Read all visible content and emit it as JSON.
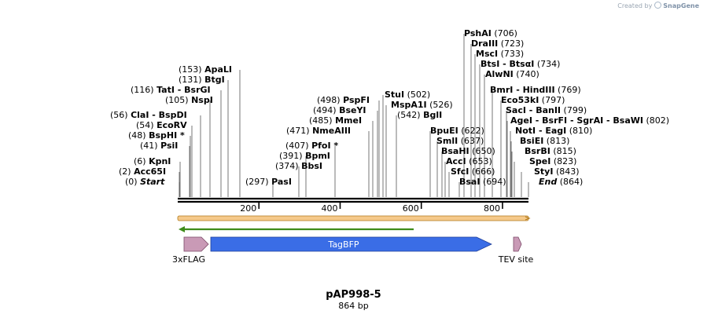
{
  "watermark": {
    "prefix": "Created by",
    "brand": "SnapGene"
  },
  "plasmid": {
    "name": "pAP998-5",
    "length_label": "864 bp",
    "length": 864
  },
  "ruler": {
    "ticks": [
      200,
      400,
      600,
      800
    ]
  },
  "sites": [
    {
      "pos": "(0)",
      "name": "Start",
      "italic": true
    },
    {
      "pos": "(2)",
      "name": "Acc65I"
    },
    {
      "pos": "(6)",
      "name": "KpnI"
    },
    {
      "pos": "(41)",
      "name": "PsiI"
    },
    {
      "pos": "(48)",
      "name": "BspHI *"
    },
    {
      "pos": "(54)",
      "name": "EcoRV"
    },
    {
      "pos": "(56)",
      "name": "ClaI",
      "extra": "- BspDI"
    },
    {
      "pos": "(105)",
      "name": "NspI"
    },
    {
      "pos": "(116)",
      "name": "TatI",
      "extra": "- BsrGI"
    },
    {
      "pos": "(131)",
      "name": "BtgI"
    },
    {
      "pos": "(153)",
      "name": "ApaLI"
    },
    {
      "pos": "(297)",
      "name": "PasI"
    },
    {
      "pos": "(374)",
      "name": "BbsI"
    },
    {
      "pos": "(391)",
      "name": "BpmI"
    },
    {
      "pos": "(407)",
      "name": "PfoI *"
    },
    {
      "pos": "(471)",
      "name": "NmeAIII"
    },
    {
      "pos": "(485)",
      "name": "MmeI"
    },
    {
      "pos": "(494)",
      "name": "BseYI"
    },
    {
      "pos": "(498)",
      "name": "PspFI"
    },
    {
      "pos": "(502)",
      "name": "StuI"
    },
    {
      "pos": "(526)",
      "name": "MspA1I"
    },
    {
      "pos": "(542)",
      "name": "BglI"
    },
    {
      "pos": "(622)",
      "name": "BpuEI"
    },
    {
      "pos": "(637)",
      "name": "SmlI"
    },
    {
      "pos": "(650)",
      "name": "BsaHI"
    },
    {
      "pos": "(653)",
      "name": "AccI"
    },
    {
      "pos": "(666)",
      "name": "SfcI"
    },
    {
      "pos": "(694)",
      "name": "BsaI"
    },
    {
      "pos": "(706)",
      "name": "PshAI"
    },
    {
      "pos": "(723)",
      "name": "DraIII"
    },
    {
      "pos": "(733)",
      "name": "MscI"
    },
    {
      "pos": "(734)",
      "name": "BtsI",
      "extra": "- BtsαI"
    },
    {
      "pos": "(740)",
      "name": "AlwNI"
    },
    {
      "pos": "(769)",
      "name": "BmrI",
      "extra": "- HindIII"
    },
    {
      "pos": "(797)",
      "name": "Eco53kI"
    },
    {
      "pos": "(799)",
      "name": "SacI",
      "extra": "- BanII"
    },
    {
      "pos": "(802)",
      "name": "AgeI",
      "extra": "- BsrFI  - SgrAI  - BsaWI"
    },
    {
      "pos": "(810)",
      "name": "NotI",
      "extra": "- EagI"
    },
    {
      "pos": "(813)",
      "name": "BsiEI"
    },
    {
      "pos": "(815)",
      "name": "BsrBI"
    },
    {
      "pos": "(823)",
      "name": "SpeI"
    },
    {
      "pos": "(843)",
      "name": "StyI"
    },
    {
      "pos": "(864)",
      "name": "End",
      "italic": true
    }
  ],
  "features": [
    {
      "name": "3xFLAG",
      "color": "#c99ab6"
    },
    {
      "name": "TagBFP",
      "color": "#3a6de6"
    },
    {
      "name": "TEV site",
      "color": "#c99ab6"
    }
  ],
  "colors": {
    "orf_bar": "#f5c98a",
    "orf_outline": "#b07a1d",
    "green_arrow": "#3f8c1a",
    "backbone": "#000000",
    "site_line": "#555555"
  }
}
